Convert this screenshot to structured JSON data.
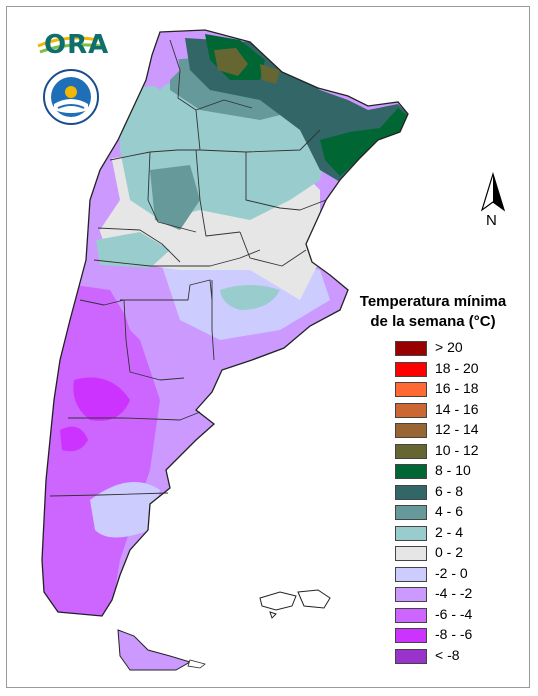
{
  "logo": {
    "text": "ORA"
  },
  "north_arrow": {
    "label": "N"
  },
  "legend": {
    "title_line1": "Temperatura mínima",
    "title_line2": "de la semana (°C)",
    "items": [
      {
        "label": "> 20",
        "color": "#990000"
      },
      {
        "label": "18 - 20",
        "color": "#ff0000"
      },
      {
        "label": "16 - 18",
        "color": "#ff6a33"
      },
      {
        "label": "14 - 16",
        "color": "#cc6633"
      },
      {
        "label": "12 - 14",
        "color": "#996633"
      },
      {
        "label": "10 - 12",
        "color": "#666633"
      },
      {
        "label": "8 - 10",
        "color": "#006633"
      },
      {
        "label": "6 - 8",
        "color": "#336666"
      },
      {
        "label": "4 - 6",
        "color": "#669999"
      },
      {
        "label": "2 - 4",
        "color": "#99cccc"
      },
      {
        "label": "0 - 2",
        "color": "#e6e6e6"
      },
      {
        "label": "-2 - 0",
        "color": "#ccccff"
      },
      {
        "label": "-4 - -2",
        "color": "#cc99ff"
      },
      {
        "label": "-6 - -4",
        "color": "#cc66ff"
      },
      {
        "label": "-8 - -6",
        "color": "#cc33ff"
      },
      {
        "label": "< -8",
        "color": "#9933cc"
      }
    ]
  }
}
